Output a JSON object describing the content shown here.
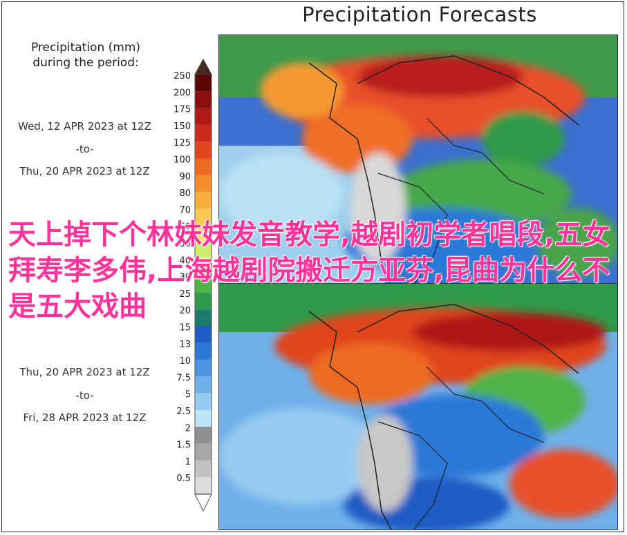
{
  "title": "Precipitation Forecasts",
  "legend": {
    "caption_line1": "Precipitation (mm)",
    "caption_line2": "during the period:",
    "ticks": [
      "250",
      "200",
      "175",
      "150",
      "125",
      "100",
      "90",
      "80",
      "70",
      "60",
      "50",
      "40",
      "30",
      "25",
      "20",
      "15",
      "13",
      "10",
      "7.5",
      "5",
      "2.5",
      "2",
      "1.5",
      "1",
      "0.5"
    ],
    "colors": [
      "#5c0505",
      "#8b0f0f",
      "#b01919",
      "#cc2a1f",
      "#e0451f",
      "#ee6a23",
      "#f58d2c",
      "#f8ae3e",
      "#fbc956",
      "#fde27a",
      "#cdeb6f",
      "#8dd457",
      "#4fb348",
      "#2f9a4a",
      "#1c7a6a",
      "#1e5cc4",
      "#2b78d8",
      "#4a94e2",
      "#6fb0ea",
      "#96cbf1",
      "#bfe3f7",
      "#8f8f8f",
      "#a8a8a8",
      "#c2c2c2",
      "#dcdcdc"
    ]
  },
  "periods": [
    {
      "start": "Wed, 12 APR 2023 at 12Z",
      "sep": "-to-",
      "end": "Thu, 20 APR 2023 at 12Z"
    },
    {
      "start": "Thu, 20 APR 2023 at 12Z",
      "sep": "-to-",
      "end": "Fri, 28 APR 2023 at 12Z"
    }
  ],
  "overlay_text": "天上掉下个林妹妹发音教学,越剧初学者唱段,五女拜寿李多伟,上海越剧院搬迁方亚芬,昆曲为什么不是五大戏曲"
}
